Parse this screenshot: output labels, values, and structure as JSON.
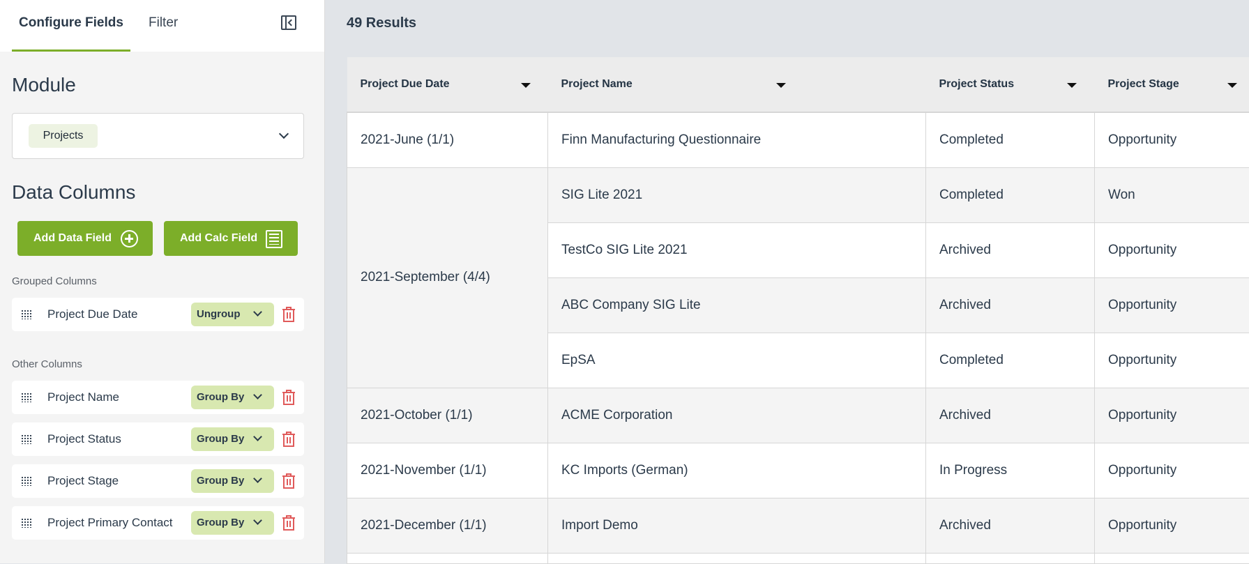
{
  "sidebar": {
    "tabs": [
      {
        "label": "Configure Fields",
        "active": true
      },
      {
        "label": "Filter",
        "active": false
      }
    ],
    "module_heading": "Module",
    "module_value": "Projects",
    "data_columns_heading": "Data Columns",
    "add_data_field": "Add Data Field",
    "add_calc_field": "Add Calc Field",
    "grouped_heading": "Grouped Columns",
    "grouped": [
      {
        "label": "Project Due Date",
        "action": "Ungroup"
      }
    ],
    "other_heading": "Other Columns",
    "other": [
      {
        "label": "Project Name",
        "action": "Group By"
      },
      {
        "label": "Project Status",
        "action": "Group By"
      },
      {
        "label": "Project Stage",
        "action": "Group By"
      },
      {
        "label": "Project Primary Contact",
        "action": "Group By"
      }
    ]
  },
  "main": {
    "results": "49 Results",
    "columns": [
      "Project Due Date",
      "Project Name",
      "Project Status",
      "Project Stage"
    ],
    "groups": [
      {
        "date": "2021-June (1/1)",
        "rows": [
          [
            "Finn Manufacturing Questionnaire",
            "Completed",
            "Opportunity"
          ]
        ]
      },
      {
        "date": "2021-September (4/4)",
        "rows": [
          [
            "SIG Lite 2021",
            "Completed",
            "Won"
          ],
          [
            "TestCo SIG Lite 2021",
            "Archived",
            "Opportunity"
          ],
          [
            "ABC Company SIG Lite",
            "Archived",
            "Opportunity"
          ],
          [
            "EpSA",
            "Completed",
            "Opportunity"
          ]
        ]
      },
      {
        "date": "2021-October (1/1)",
        "rows": [
          [
            "ACME Corporation",
            "Archived",
            "Opportunity"
          ]
        ]
      },
      {
        "date": "2021-November (1/1)",
        "rows": [
          [
            "KC Imports (German)",
            "In Progress",
            "Opportunity"
          ]
        ]
      },
      {
        "date": "2021-December (1/1)",
        "rows": [
          [
            "Import Demo",
            "Archived",
            "Opportunity"
          ]
        ]
      }
    ]
  },
  "colors": {
    "accent": "#7cae29",
    "pill": "#d8e8b0",
    "trash": "#e05a5a"
  }
}
